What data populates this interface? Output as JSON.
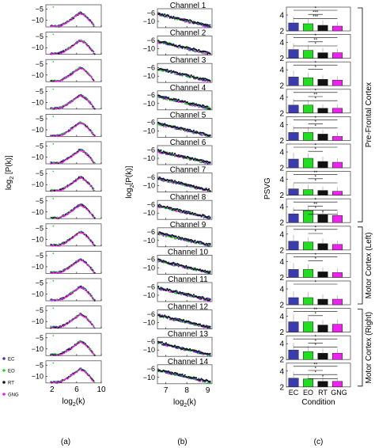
{
  "colors": {
    "EC": "#3b3bb0",
    "EO": "#22dd22",
    "RT": "#111111",
    "GNG": "#ee22ee",
    "frame": "#555555"
  },
  "chart_data": [
    {
      "panel": "a",
      "type": "scatter",
      "panel_label": "(a)",
      "xlabel": "log2(k)",
      "ylabel": "log2 [P(k)]",
      "xlim": [
        1,
        10
      ],
      "ylim": [
        -13,
        -3
      ],
      "xticks": [
        2,
        6,
        10
      ],
      "yticks": [
        -5,
        -10
      ],
      "subplots": 14,
      "legend": {
        "position": "bottom-left",
        "entries": [
          "EC",
          "EO",
          "RT",
          "GNG"
        ]
      },
      "curve_shape": {
        "rise_start": 3,
        "peak_x": 6.5,
        "peak_y": -6.5,
        "end_x": 9,
        "end_y": -13
      }
    },
    {
      "panel": "b",
      "type": "scatter",
      "panel_label": "(b)",
      "xlabel": "log2(k)",
      "ylabel": "log2[P(k)]",
      "xlim": [
        6.6,
        9.2
      ],
      "ylim": [
        -13,
        -4
      ],
      "xticks": [
        7,
        8,
        9
      ],
      "yticks": [
        -6,
        -10
      ],
      "channels": [
        "Channel 1",
        "Channel 2",
        "Channel 3",
        "Channel 4",
        "Channel 5",
        "Channel 6",
        "Channel 7",
        "Channel 8",
        "Channel 9",
        "Channel 10",
        "Channel 11",
        "Channel 12",
        "Channel 13",
        "Channel 14"
      ],
      "curve_shape": {
        "start_y": -6.5,
        "end_y": -12.5
      }
    },
    {
      "panel": "c",
      "type": "bar",
      "panel_label": "(c)",
      "xlabel": "Condition",
      "ylabel": "PSVG",
      "categories": [
        "EC",
        "EO",
        "RT",
        "GNG"
      ],
      "ylim": [
        2,
        5
      ],
      "yticks": [
        2,
        4
      ],
      "series": [
        {
          "channel": 1,
          "values": [
            3.0,
            2.9,
            2.7,
            2.6
          ],
          "errors": [
            0.8,
            0.6,
            0.6,
            0.5
          ],
          "stars": [
            "*",
            "***",
            "***"
          ]
        },
        {
          "channel": 2,
          "values": [
            3.1,
            3.0,
            2.7,
            2.7
          ],
          "errors": [
            0.8,
            0.7,
            0.6,
            0.5
          ],
          "stars": [
            "*",
            "**",
            "*"
          ]
        },
        {
          "channel": 3,
          "values": [
            3.1,
            3.0,
            2.8,
            2.7
          ],
          "errors": [
            0.8,
            0.6,
            0.5,
            0.5
          ],
          "stars": [
            "*",
            "*"
          ]
        },
        {
          "channel": 4,
          "values": [
            3.0,
            3.0,
            2.6,
            2.6
          ],
          "errors": [
            0.8,
            0.6,
            0.5,
            0.5
          ],
          "stars": [
            "*",
            "**",
            "*"
          ]
        },
        {
          "channel": 5,
          "values": [
            3.0,
            3.0,
            2.8,
            2.5
          ],
          "errors": [
            0.8,
            0.7,
            0.5,
            0.5
          ],
          "stars": [
            "*",
            "*",
            "*"
          ]
        },
        {
          "channel": 6,
          "values": [
            3.1,
            3.2,
            2.8,
            2.7
          ],
          "errors": [
            0.8,
            0.6,
            0.6,
            0.5
          ],
          "stars": [
            "*",
            "*"
          ]
        },
        {
          "channel": 7,
          "values": [
            2.8,
            2.7,
            2.6,
            2.5
          ],
          "errors": [
            0.7,
            0.6,
            0.5,
            0.5
          ],
          "stars": [
            "**",
            "*",
            "*"
          ]
        },
        {
          "channel": 8,
          "values": [
            3.1,
            3.5,
            3.0,
            2.9
          ],
          "errors": [
            0.8,
            0.7,
            0.6,
            0.5
          ],
          "stars": [
            "*",
            "**",
            "*",
            "*"
          ]
        },
        {
          "channel": 9,
          "values": [
            3.1,
            3.0,
            2.8,
            2.7
          ],
          "errors": [
            0.8,
            0.6,
            0.6,
            0.5
          ],
          "stars": [
            "*",
            "*"
          ]
        },
        {
          "channel": 10,
          "values": [
            3.0,
            3.0,
            2.7,
            2.6
          ],
          "errors": [
            0.8,
            0.6,
            0.5,
            0.5
          ],
          "stars": [
            "*",
            "*"
          ]
        },
        {
          "channel": 11,
          "values": [
            2.9,
            2.9,
            2.7,
            2.7
          ],
          "errors": [
            0.8,
            0.7,
            0.6,
            0.5
          ],
          "stars": [
            "*"
          ]
        },
        {
          "channel": 12,
          "values": [
            3.3,
            3.3,
            2.9,
            3.0
          ],
          "errors": [
            0.9,
            0.7,
            0.6,
            0.6
          ],
          "stars": [
            "**",
            "*"
          ]
        },
        {
          "channel": 13,
          "values": [
            3.2,
            3.0,
            2.8,
            2.8
          ],
          "errors": [
            0.9,
            0.7,
            0.6,
            0.5
          ],
          "stars": [
            "*",
            "*",
            "*"
          ]
        },
        {
          "channel": 14,
          "values": [
            3.1,
            3.0,
            2.7,
            2.7
          ],
          "errors": [
            0.8,
            0.6,
            0.5,
            0.5
          ],
          "stars": [
            "**",
            "*",
            "*",
            "*"
          ]
        }
      ],
      "regions": [
        {
          "label": "Pre-Frontal Cortex",
          "channels": [
            1,
            8
          ]
        },
        {
          "label": "Motor Cortex (Left)",
          "channels": [
            9,
            11
          ]
        },
        {
          "label": "Motor Cortex (Right)",
          "channels": [
            12,
            14
          ]
        }
      ]
    }
  ]
}
